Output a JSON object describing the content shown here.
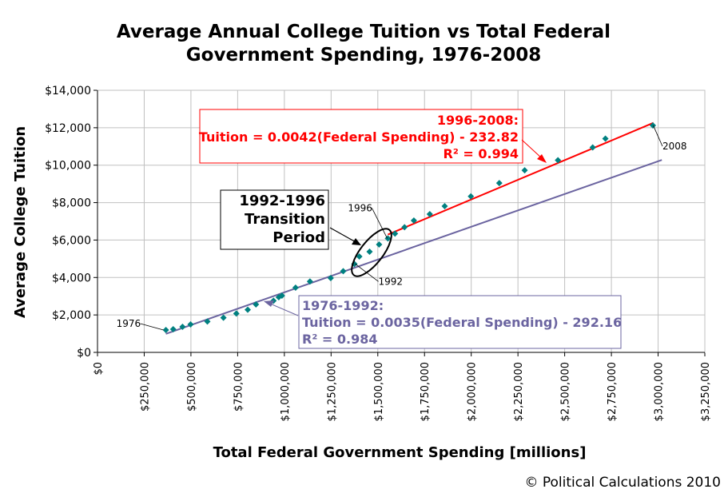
{
  "chart_data": {
    "type": "scatter",
    "title": "Average Annual College Tuition vs Total Federal Government Spending, 1976-2008",
    "title_lines": [
      "Average Annual College Tuition vs Total Federal",
      "Government Spending, 1976-2008"
    ],
    "xlabel": "Total Federal Government Spending [millions]",
    "ylabel": "Average College Tuition",
    "xlim": [
      0,
      3250000
    ],
    "ylim": [
      0,
      14000
    ],
    "grid": true,
    "x_ticks": [
      "$0",
      "$250,000",
      "$500,000",
      "$750,000",
      "$1,000,000",
      "$1,250,000",
      "$1,500,000",
      "$1,750,000",
      "$2,000,000",
      "$2,250,000",
      "$2,500,000",
      "$2,750,000",
      "$3,000,000",
      "$3,250,000"
    ],
    "y_ticks": [
      "$0",
      "$2,000",
      "$4,000",
      "$6,000",
      "$8,000",
      "$10,000",
      "$12,000",
      "$14,000"
    ],
    "marker_color": "#008080",
    "points": [
      [
        366000,
        1195
      ],
      [
        405000,
        1238
      ],
      [
        455000,
        1366
      ],
      [
        498000,
        1494
      ],
      [
        588000,
        1651
      ],
      [
        674000,
        1852
      ],
      [
        743000,
        2075
      ],
      [
        804000,
        2276
      ],
      [
        848000,
        2561
      ],
      [
        942000,
        2761
      ],
      [
        970000,
        2945
      ],
      [
        987000,
        3030
      ],
      [
        1060000,
        3457
      ],
      [
        1137000,
        3786
      ],
      [
        1248000,
        3969
      ],
      [
        1315000,
        4340
      ],
      [
        1375000,
        4724
      ],
      [
        1401000,
        5122
      ],
      [
        1456000,
        5378
      ],
      [
        1507000,
        5762
      ],
      [
        1554000,
        6090
      ],
      [
        1592000,
        6346
      ],
      [
        1643000,
        6687
      ],
      [
        1693000,
        7043
      ],
      [
        1778000,
        7384
      ],
      [
        1858000,
        7811
      ],
      [
        1998000,
        8336
      ],
      [
        2150000,
        9044
      ],
      [
        2286000,
        9727
      ],
      [
        2464000,
        10267
      ],
      [
        2650000,
        10950
      ],
      [
        2718000,
        11419
      ],
      [
        2972000,
        12120
      ]
    ],
    "point_labels": [
      {
        "text": "1976",
        "index": 0
      },
      {
        "text": "1992",
        "index": 16
      },
      {
        "text": "1996",
        "index": 20
      },
      {
        "text": "2008",
        "index": 32
      }
    ],
    "trendlines": [
      {
        "name": "1976-1992",
        "slope": 0.0035,
        "intercept": -292.16,
        "x_range": [
          366000,
          3020000
        ],
        "color": "#6b64a0",
        "label_lines": [
          "1976-1992:",
          "Tuition = 0.0035(Federal Spending) - 292.16",
          "R² = 0.984"
        ]
      },
      {
        "name": "1996-2008",
        "slope": 0.0042,
        "intercept": -232.82,
        "x_range": [
          1554000,
          2975000
        ],
        "color": "#ff0000",
        "label_lines": [
          "1996-2008:",
          "Tuition = 0.0042(Federal Spending) - 232.82",
          "R² = 0.994"
        ]
      }
    ],
    "annotation": {
      "lines": [
        "1992-1996",
        "Transition",
        "Period"
      ]
    }
  },
  "copyright": "© Political Calculations 2010"
}
